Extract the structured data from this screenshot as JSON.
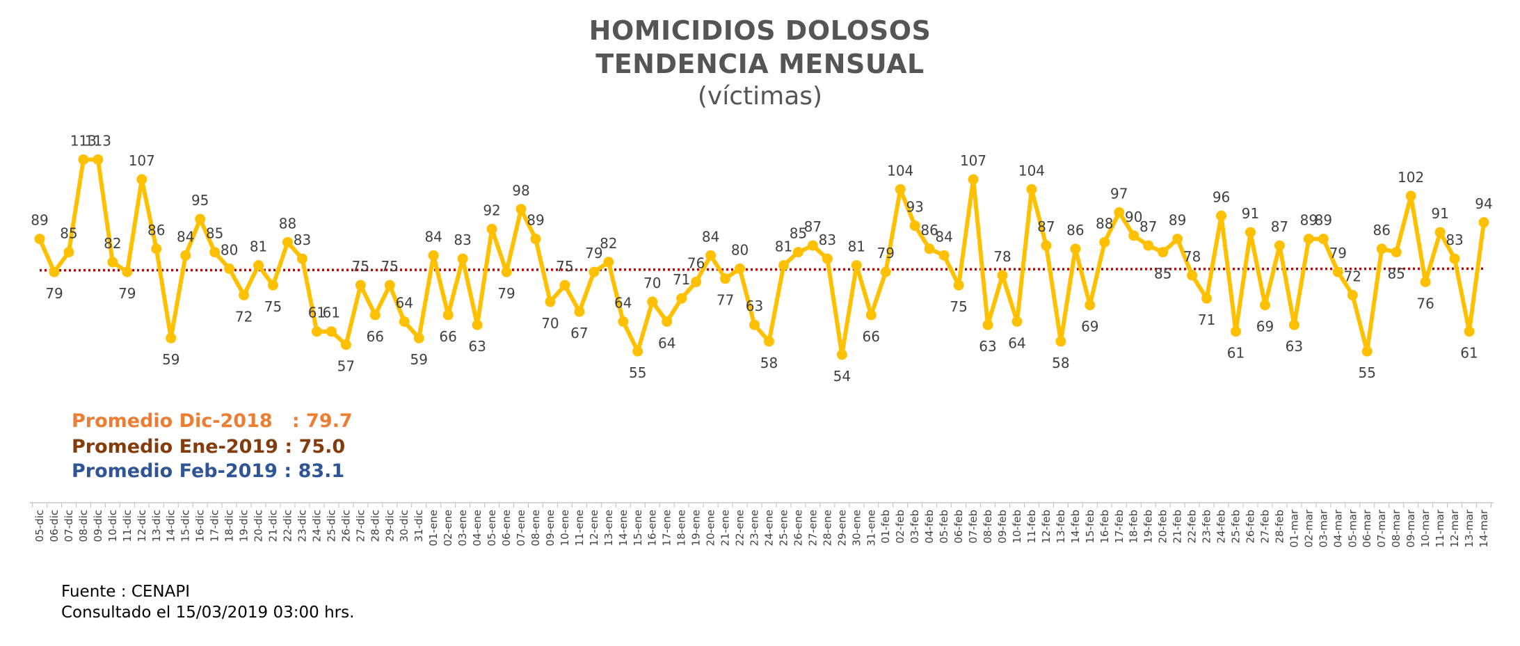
{
  "title_line1": "HOMICIDIOS DOLOSOS",
  "title_line2": "TENDENCIA MENSUAL",
  "title_line3": "(víctimas)",
  "averages": [
    {
      "text": "Promedio Dic-2018   : 79.7",
      "color": "#ED7D31"
    },
    {
      "text": "Promedio Ene-2019 : 75.0",
      "color": "#843C0C"
    },
    {
      "text": "Promedio Feb-2019 : 83.1",
      "color": "#2F5597"
    }
  ],
  "source_line1": "Fuente : CENAPI",
  "source_line2": "Consultado el 15/03/2019  03:00 hrs.",
  "chart_data": {
    "type": "line",
    "title": "HOMICIDIOS DOLOSOS TENDENCIA MENSUAL (víctimas)",
    "series_color": "#FFC000",
    "trend_color": "#C00000",
    "trend_style": "dotted",
    "ylim": [
      50,
      115
    ],
    "categories": [
      "05-dic",
      "06-dic",
      "07-dic",
      "08-dic",
      "09-dic",
      "10-dic",
      "11-dic",
      "12-dic",
      "13-dic",
      "14-dic",
      "15-dic",
      "16-dic",
      "17-dic",
      "18-dic",
      "19-dic",
      "20-dic",
      "21-dic",
      "22-dic",
      "23-dic",
      "24-dic",
      "25-dic",
      "26-dic",
      "27-dic",
      "28-dic",
      "29-dic",
      "30-dic",
      "31-dic",
      "01-ene",
      "02-ene",
      "03-ene",
      "04-ene",
      "05-ene",
      "06-ene",
      "07-ene",
      "08-ene",
      "09-ene",
      "10-ene",
      "11-ene",
      "12-ene",
      "13-ene",
      "14-ene",
      "15-ene",
      "16-ene",
      "17-ene",
      "18-ene",
      "19-ene",
      "20-ene",
      "21-ene",
      "22-ene",
      "23-ene",
      "24-ene",
      "25-ene",
      "26-ene",
      "27-ene",
      "28-ene",
      "29-ene",
      "30-ene",
      "31-ene",
      "01-feb",
      "02-feb",
      "03-feb",
      "04-feb",
      "05-feb",
      "06-feb",
      "07-feb",
      "08-feb",
      "09-feb",
      "10-feb",
      "11-feb",
      "12-feb",
      "13-feb",
      "14-feb",
      "15-feb",
      "16-feb",
      "17-feb",
      "18-feb",
      "19-feb",
      "20-feb",
      "21-feb",
      "22-feb",
      "23-feb",
      "24-feb",
      "25-feb",
      "26-feb",
      "27-feb",
      "28-feb",
      "01-mar",
      "02-mar",
      "03-mar",
      "04-mar",
      "05-mar",
      "06-mar",
      "07-mar",
      "08-mar",
      "09-mar",
      "10-mar",
      "11-mar",
      "12-mar",
      "13-mar",
      "14-mar"
    ],
    "values": [
      89,
      79,
      85,
      113,
      113,
      82,
      79,
      107,
      86,
      59,
      84,
      95,
      85,
      80,
      72,
      81,
      75,
      88,
      83,
      61,
      61,
      57,
      75,
      66,
      75,
      64,
      59,
      84,
      66,
      83,
      63,
      92,
      79,
      98,
      89,
      70,
      75,
      67,
      79,
      82,
      64,
      55,
      70,
      64,
      71,
      76,
      84,
      77,
      80,
      63,
      58,
      81,
      85,
      87,
      83,
      54,
      81,
      66,
      79,
      104,
      93,
      86,
      84,
      75,
      107,
      63,
      78,
      64,
      104,
      87,
      58,
      86,
      69,
      88,
      97,
      90,
      87,
      85,
      89,
      78,
      71,
      96,
      61,
      91,
      69,
      87,
      63,
      89,
      89,
      79,
      72,
      55,
      86,
      85,
      102,
      76,
      91,
      83,
      61,
      94
    ],
    "trend": [
      79.5,
      80.0
    ]
  }
}
